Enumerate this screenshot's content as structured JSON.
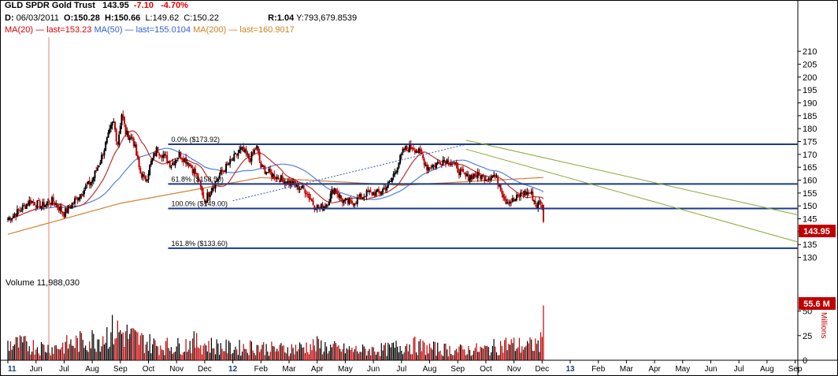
{
  "header": {
    "title": "GLD SPDR Gold Trust",
    "last": "143.95",
    "change": "-7.10",
    "change_pct": "-4.70%",
    "d_label": "D:",
    "date": "06/03/2011",
    "open": "O:150.28",
    "high": "H:150.66",
    "low": "L:149.62",
    "close": "C:150.22",
    "ratio": "R:1.04",
    "y": "Y:793,679.8539",
    "ma20": "MA(20)",
    "ma20_last": "last=153.23",
    "ma50": "MA(50)",
    "ma50_last": "last=155.0104",
    "ma200": "MA(200)",
    "ma200_last": "last=160.9017"
  },
  "colors": {
    "up_candle": "#000000",
    "down_candle": "#c00000",
    "ma20": "#c03030",
    "ma50": "#5080e0",
    "ma200": "#d08030",
    "fib_lines": "#1a3a8a",
    "trend_lines": "#88aa33",
    "dotted_trend": "#3050c0",
    "badge": "#c00000",
    "cursor_line": "#e08080"
  },
  "price_badge": "143.95",
  "volume": {
    "label": "Volume 11,988,030",
    "badge": "55.6 M",
    "axis_unit": "Millions",
    "y_ticks": [
      "50",
      "25",
      "0"
    ]
  },
  "fib_labels": [
    "0.0% ($173.92)",
    "61.8% ($158.50)",
    "100.0% ($149.00)",
    "161.8% ($133.60)"
  ],
  "chart_data": {
    "type": "line",
    "title": "GLD SPDR Gold Trust",
    "x_tick_labels": [
      "11",
      "Jun",
      "Jul",
      "Aug",
      "Sep",
      "Oct",
      "Nov",
      "Dec",
      "12",
      "Feb",
      "Mar",
      "Apr",
      "May",
      "Jun",
      "Jul",
      "Aug",
      "Sep",
      "Oct",
      "Nov",
      "Dec",
      "13",
      "Feb",
      "Mar",
      "Apr",
      "May",
      "Jun",
      "Jul",
      "Aug",
      "Sep"
    ],
    "bold_x_ticks": [
      "11",
      "12",
      "13"
    ],
    "y_ticks": [
      130,
      135,
      140,
      145,
      150,
      155,
      160,
      165,
      170,
      175,
      180,
      185,
      190,
      195,
      200,
      205,
      210
    ],
    "ylim": [
      127,
      214
    ],
    "grid": false,
    "fib_levels": [
      173.92,
      158.5,
      149.0,
      133.6
    ],
    "price_anchors": [
      {
        "month": 0.0,
        "price": 145
      },
      {
        "month": 0.4,
        "price": 148
      },
      {
        "month": 0.8,
        "price": 152
      },
      {
        "month": 1.2,
        "price": 150
      },
      {
        "month": 1.6,
        "price": 152
      },
      {
        "month": 2.0,
        "price": 147
      },
      {
        "month": 2.3,
        "price": 151
      },
      {
        "month": 2.6,
        "price": 155
      },
      {
        "month": 3.0,
        "price": 160
      },
      {
        "month": 3.3,
        "price": 168
      },
      {
        "month": 3.6,
        "price": 178
      },
      {
        "month": 3.75,
        "price": 183
      },
      {
        "month": 3.9,
        "price": 174
      },
      {
        "month": 4.05,
        "price": 186
      },
      {
        "month": 4.2,
        "price": 178
      },
      {
        "month": 4.45,
        "price": 176
      },
      {
        "month": 4.7,
        "price": 163
      },
      {
        "month": 4.9,
        "price": 160
      },
      {
        "month": 5.1,
        "price": 167
      },
      {
        "month": 5.3,
        "price": 172
      },
      {
        "month": 5.5,
        "price": 170
      },
      {
        "month": 5.8,
        "price": 166
      },
      {
        "month": 6.1,
        "price": 170
      },
      {
        "month": 6.4,
        "price": 167
      },
      {
        "month": 6.7,
        "price": 162
      },
      {
        "month": 7.0,
        "price": 152
      },
      {
        "month": 7.3,
        "price": 158
      },
      {
        "month": 7.6,
        "price": 163
      },
      {
        "month": 8.0,
        "price": 168
      },
      {
        "month": 8.3,
        "price": 172
      },
      {
        "month": 8.6,
        "price": 168
      },
      {
        "month": 8.85,
        "price": 173
      },
      {
        "month": 9.0,
        "price": 165
      },
      {
        "month": 9.4,
        "price": 162
      },
      {
        "month": 9.8,
        "price": 160
      },
      {
        "month": 10.2,
        "price": 158
      },
      {
        "month": 10.6,
        "price": 156
      },
      {
        "month": 10.9,
        "price": 150
      },
      {
        "month": 11.1,
        "price": 149
      },
      {
        "month": 11.35,
        "price": 151
      },
      {
        "month": 11.6,
        "price": 157
      },
      {
        "month": 11.9,
        "price": 152
      },
      {
        "month": 12.2,
        "price": 151
      },
      {
        "month": 12.5,
        "price": 153
      },
      {
        "month": 12.8,
        "price": 155
      },
      {
        "month": 13.2,
        "price": 155
      },
      {
        "month": 13.6,
        "price": 159
      },
      {
        "month": 13.9,
        "price": 167
      },
      {
        "month": 14.1,
        "price": 172
      },
      {
        "month": 14.4,
        "price": 173
      },
      {
        "month": 14.7,
        "price": 170
      },
      {
        "month": 14.9,
        "price": 165
      },
      {
        "month": 15.2,
        "price": 166
      },
      {
        "month": 15.5,
        "price": 168
      },
      {
        "month": 15.8,
        "price": 167
      },
      {
        "month": 16.0,
        "price": 164
      },
      {
        "month": 16.3,
        "price": 161
      },
      {
        "month": 16.6,
        "price": 162
      },
      {
        "month": 17.0,
        "price": 161
      },
      {
        "month": 17.3,
        "price": 162
      },
      {
        "month": 17.5,
        "price": 158
      },
      {
        "month": 17.7,
        "price": 152
      },
      {
        "month": 18.0,
        "price": 152
      },
      {
        "month": 18.3,
        "price": 155
      },
      {
        "month": 18.6,
        "price": 155
      },
      {
        "month": 18.8,
        "price": 150
      },
      {
        "month": 18.95,
        "price": 152
      },
      {
        "month": 19.05,
        "price": 144
      }
    ],
    "series": [
      {
        "name": "MA(20)",
        "values": [
          153.23
        ]
      },
      {
        "name": "MA(50)",
        "values": [
          155.0104
        ]
      },
      {
        "name": "MA(200)",
        "values": [
          160.9017
        ]
      }
    ],
    "volume_anchors_millions": [
      {
        "month": 0.5,
        "value": 16
      },
      {
        "month": 1.5,
        "value": 12
      },
      {
        "month": 2.5,
        "value": 18
      },
      {
        "month": 3.2,
        "value": 22
      },
      {
        "month": 3.8,
        "value": 30
      },
      {
        "month": 4.2,
        "value": 26
      },
      {
        "month": 4.7,
        "value": 20
      },
      {
        "month": 5.3,
        "value": 15
      },
      {
        "month": 6.0,
        "value": 14
      },
      {
        "month": 6.6,
        "value": 18
      },
      {
        "month": 7.2,
        "value": 15
      },
      {
        "month": 8.0,
        "value": 12
      },
      {
        "month": 8.8,
        "value": 14
      },
      {
        "month": 9.5,
        "value": 11
      },
      {
        "month": 10.2,
        "value": 12
      },
      {
        "month": 11.0,
        "value": 15
      },
      {
        "month": 11.8,
        "value": 11
      },
      {
        "month": 12.5,
        "value": 10
      },
      {
        "month": 13.5,
        "value": 11
      },
      {
        "month": 14.2,
        "value": 16
      },
      {
        "month": 15.0,
        "value": 12
      },
      {
        "month": 16.0,
        "value": 10
      },
      {
        "month": 17.0,
        "value": 11
      },
      {
        "month": 17.7,
        "value": 16
      },
      {
        "month": 18.5,
        "value": 14
      },
      {
        "month": 19.0,
        "value": 18
      }
    ],
    "last_volume_millions": 55.6
  }
}
